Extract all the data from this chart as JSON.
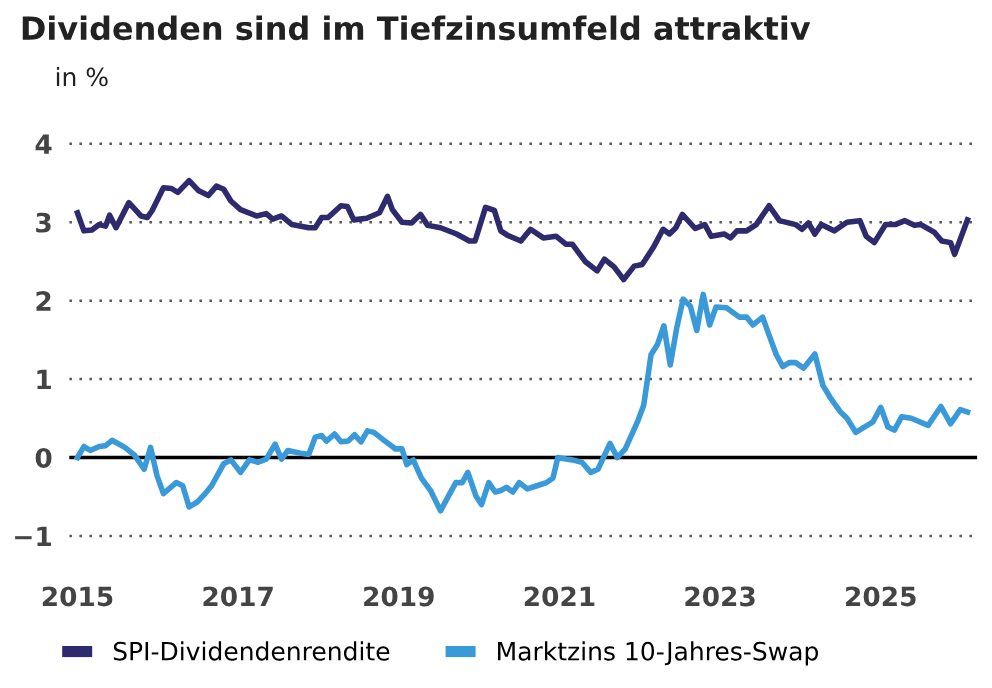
{
  "chart_data": {
    "type": "line",
    "title": "Dividenden sind im Tiefzinsumfeld attraktiv",
    "subtitle": "in %",
    "xlim": [
      2014.9,
      2026.2
    ],
    "ylim": [
      -1,
      4
    ],
    "xticks": [
      2015,
      2017,
      2019,
      2021,
      2023,
      2025
    ],
    "yticks": [
      {
        "value": -1,
        "label": "−1"
      },
      0,
      1,
      2,
      3,
      4
    ],
    "grid": "y",
    "legend": "bottom",
    "line_style": "solid",
    "marker": "none",
    "ref_lines": [
      {
        "axis": "y",
        "value": 0,
        "label": null,
        "color": "#000000",
        "line_style": "solid"
      }
    ],
    "series": [
      {
        "name": "SPI-Dividendenrendite",
        "color": "#2e2a6e",
        "x": [
          2015.0,
          2015.08,
          2015.18,
          2015.27,
          2015.35,
          2015.4,
          2015.48,
          2015.64,
          2015.79,
          2015.87,
          2015.93,
          2016.07,
          2016.17,
          2016.25,
          2016.39,
          2016.51,
          2016.63,
          2016.73,
          2016.82,
          2016.91,
          2017.03,
          2017.23,
          2017.35,
          2017.43,
          2017.54,
          2017.67,
          2017.88,
          2017.96,
          2018.04,
          2018.12,
          2018.28,
          2018.36,
          2018.44,
          2018.6,
          2018.76,
          2018.86,
          2018.92,
          2019.04,
          2019.16,
          2019.27,
          2019.36,
          2019.52,
          2019.72,
          2019.88,
          2019.95,
          2020.08,
          2020.19,
          2020.27,
          2020.36,
          2020.52,
          2020.64,
          2020.8,
          2020.96,
          2021.08,
          2021.16,
          2021.32,
          2021.47,
          2021.56,
          2021.68,
          2021.8,
          2021.93,
          2022.03,
          2022.17,
          2022.29,
          2022.37,
          2022.45,
          2022.53,
          2022.69,
          2022.81,
          2022.89,
          2023.05,
          2023.13,
          2023.21,
          2023.33,
          2023.45,
          2023.61,
          2023.74,
          2023.94,
          2024.02,
          2024.1,
          2024.18,
          2024.26,
          2024.42,
          2024.58,
          2024.74,
          2024.82,
          2024.92,
          2025.06,
          2025.18,
          2025.3,
          2025.42,
          2025.5,
          2025.67,
          2025.76,
          2025.87,
          2025.92,
          2026.08
        ],
        "values": [
          3.12,
          2.89,
          2.9,
          2.97,
          2.95,
          3.09,
          2.93,
          3.25,
          3.08,
          3.06,
          3.15,
          3.44,
          3.43,
          3.38,
          3.53,
          3.4,
          3.34,
          3.46,
          3.42,
          3.27,
          3.16,
          3.08,
          3.11,
          3.04,
          3.08,
          2.97,
          2.93,
          2.93,
          3.06,
          3.06,
          3.21,
          3.2,
          3.03,
          3.05,
          3.12,
          3.33,
          3.16,
          3.0,
          2.99,
          3.1,
          2.96,
          2.93,
          2.85,
          2.76,
          2.76,
          3.19,
          3.15,
          2.89,
          2.83,
          2.76,
          2.91,
          2.8,
          2.82,
          2.72,
          2.72,
          2.5,
          2.38,
          2.53,
          2.43,
          2.27,
          2.44,
          2.46,
          2.68,
          2.91,
          2.85,
          2.93,
          3.1,
          2.92,
          2.97,
          2.82,
          2.85,
          2.8,
          2.89,
          2.89,
          2.97,
          3.21,
          3.02,
          2.97,
          2.91,
          2.99,
          2.85,
          2.97,
          2.89,
          3.0,
          3.02,
          2.82,
          2.74,
          2.97,
          2.97,
          3.02,
          2.96,
          2.97,
          2.87,
          2.76,
          2.74,
          2.59,
          3.03
        ]
      },
      {
        "name": "Marktzins 10-Jahres-Swap",
        "color": "#3a9ad9",
        "x": [
          2015.0,
          2015.08,
          2015.16,
          2015.27,
          2015.35,
          2015.43,
          2015.59,
          2015.71,
          2015.83,
          2015.91,
          2015.99,
          2016.07,
          2016.23,
          2016.31,
          2016.39,
          2016.49,
          2016.59,
          2016.67,
          2016.82,
          2016.91,
          2017.03,
          2017.14,
          2017.25,
          2017.35,
          2017.46,
          2017.54,
          2017.62,
          2017.8,
          2017.88,
          2017.96,
          2018.04,
          2018.1,
          2018.2,
          2018.28,
          2018.37,
          2018.45,
          2018.53,
          2018.61,
          2018.69,
          2018.84,
          2018.96,
          2019.04,
          2019.1,
          2019.18,
          2019.28,
          2019.4,
          2019.52,
          2019.63,
          2019.71,
          2019.79,
          2019.86,
          2019.96,
          2020.03,
          2020.12,
          2020.2,
          2020.27,
          2020.34,
          2020.42,
          2020.5,
          2020.6,
          2020.72,
          2020.84,
          2020.92,
          2020.98,
          2021.08,
          2021.16,
          2021.28,
          2021.39,
          2021.48,
          2021.63,
          2021.72,
          2021.82,
          2021.97,
          2022.05,
          2022.14,
          2022.22,
          2022.3,
          2022.38,
          2022.46,
          2022.54,
          2022.63,
          2022.71,
          2022.79,
          2022.87,
          2022.95,
          2023.08,
          2023.24,
          2023.33,
          2023.41,
          2023.53,
          2023.61,
          2023.7,
          2023.78,
          2023.86,
          2023.94,
          2024.04,
          2024.18,
          2024.28,
          2024.38,
          2024.5,
          2024.58,
          2024.69,
          2024.8,
          2024.9,
          2025.0,
          2025.09,
          2025.17,
          2025.26,
          2025.38,
          2025.59,
          2025.75,
          2025.87,
          2025.99,
          2026.08
        ],
        "values": [
          0,
          0.14,
          0.09,
          0.14,
          0.15,
          0.22,
          0.13,
          0.03,
          -0.15,
          0.13,
          -0.23,
          -0.46,
          -0.32,
          -0.36,
          -0.63,
          -0.57,
          -0.46,
          -0.36,
          -0.08,
          -0.03,
          -0.19,
          -0.03,
          -0.06,
          -0.02,
          0.17,
          -0.02,
          0.09,
          0.05,
          0.04,
          0.26,
          0.28,
          0.21,
          0.3,
          0.2,
          0.21,
          0.29,
          0.2,
          0.34,
          0.32,
          0.2,
          0.11,
          0.11,
          -0.09,
          -0.03,
          -0.26,
          -0.43,
          -0.68,
          -0.47,
          -0.32,
          -0.32,
          -0.19,
          -0.49,
          -0.6,
          -0.32,
          -0.44,
          -0.42,
          -0.38,
          -0.44,
          -0.32,
          -0.4,
          -0.36,
          -0.32,
          -0.26,
          0,
          -0.02,
          -0.03,
          -0.06,
          -0.19,
          -0.15,
          0.18,
          0,
          0.11,
          0.45,
          0.67,
          1.31,
          1.44,
          1.68,
          1.18,
          1.65,
          2.02,
          1.93,
          1.62,
          2.08,
          1.69,
          1.92,
          1.91,
          1.79,
          1.79,
          1.69,
          1.79,
          1.56,
          1.31,
          1.16,
          1.21,
          1.21,
          1.14,
          1.32,
          0.92,
          0.75,
          0.58,
          0.5,
          0.32,
          0.39,
          0.45,
          0.64,
          0.39,
          0.35,
          0.52,
          0.5,
          0.41,
          0.65,
          0.43,
          0.61,
          0.58
        ]
      }
    ]
  }
}
